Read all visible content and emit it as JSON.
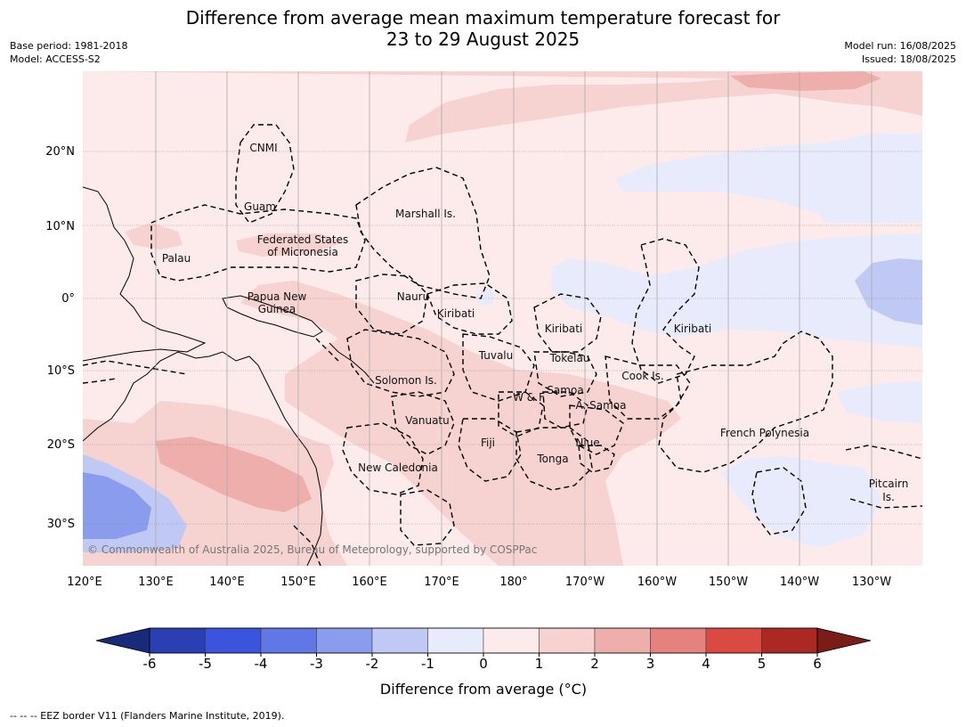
{
  "title": {
    "line1": "Difference from average mean maximum temperature forecast for",
    "line2": "23 to 29 August 2025"
  },
  "meta": {
    "base_period": "Base period: 1981-2018",
    "model": "Model: ACCESS-S2",
    "model_run": "Model run: 16/08/2025",
    "issued": "Issued: 18/08/2025"
  },
  "latitude_labels": [
    "20°N",
    "10°N",
    "0°",
    "10°S",
    "20°S",
    "30°S"
  ],
  "longitude_labels": [
    "120°E",
    "130°E",
    "140°E",
    "150°E",
    "160°E",
    "170°E",
    "180°",
    "170°W",
    "160°W",
    "150°W",
    "140°W",
    "130°W"
  ],
  "places": {
    "cnmi": "CNMI",
    "guam": "Guam",
    "marshall": "Marshall Is.",
    "fsm1": "Federated States",
    "fsm2": "of Micronesia",
    "palau": "Palau",
    "png1": "Papua New",
    "png2": "Guinea",
    "nauru": "Nauru",
    "kiribati1": "Kiribati",
    "kiribati2": "Kiribati",
    "kiribati3": "Kiribati",
    "tuvalu": "Tuvalu",
    "tokelau": "Tokelau",
    "cook": "Cook Is.",
    "solomon": "Solomon Is.",
    "samoa": "Samoa",
    "wf": "W & F",
    "asamoa": "A. Samoa",
    "vanuatu": "Vanuatu",
    "fiji": "Fiji",
    "niue": "Niue",
    "tonga": "Tonga",
    "newcal": "New Caledonia",
    "frpoly": "French Polynesia",
    "pitcairn1": "Pitcairn",
    "pitcairn2": "Is."
  },
  "copyright": "© Commonwealth of Australia 2025, Bureau of Meteorology, supported by COSPPac",
  "colorbar": {
    "ticks": [
      "-6",
      "-5",
      "-4",
      "-3",
      "-2",
      "-1",
      "0",
      "1",
      "2",
      "3",
      "4",
      "5",
      "6"
    ],
    "colors": [
      "#2a3fb3",
      "#3a54de",
      "#5f78e6",
      "#8a9ced",
      "#c0c9f3",
      "#e8ebfb",
      "#fcebea",
      "#f6d2d1",
      "#eeaeab",
      "#e6827e",
      "#da4a42",
      "#ac2822"
    ],
    "low_extend_color": "#1a2a7a",
    "high_extend_color": "#7a1c18",
    "label": "Difference from average (°C)"
  },
  "footer": "--  --  -- EEZ border V11 (Flanders Marine Institute, 2019)."
}
